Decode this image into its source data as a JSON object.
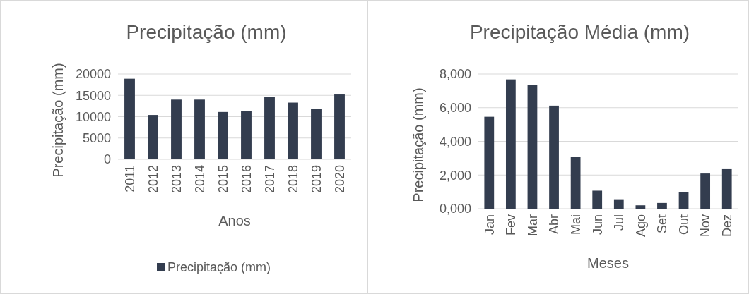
{
  "chart_data": [
    {
      "type": "bar",
      "title": "Precipitação (mm)",
      "xlabel": "Anos",
      "ylabel": "Precipitação (mm)",
      "categories": [
        "2011",
        "2012",
        "2013",
        "2014",
        "2015",
        "2016",
        "2017",
        "2018",
        "2019",
        "2020"
      ],
      "series": [
        {
          "name": "Precipitação (mm)",
          "color": "#333d4f",
          "values": [
            18900,
            10400,
            14000,
            14000,
            11100,
            11400,
            14700,
            13300,
            11900,
            15200
          ]
        }
      ],
      "ylim": [
        0,
        20000
      ],
      "yticks": [
        0,
        5000,
        10000,
        15000,
        20000
      ],
      "grid": "y",
      "legend": "bottom"
    },
    {
      "type": "bar",
      "title": "Precipitação Média (mm)",
      "xlabel": "Meses",
      "ylabel": "Precipitação (mm)",
      "categories": [
        "Jan",
        "Fev",
        "Mar",
        "Abr",
        "Mai",
        "Jun",
        "Jul",
        "Ago",
        "Set",
        "Out",
        "Nov",
        "Dez"
      ],
      "series": [
        {
          "color": "#333d4f",
          "values": [
            5460,
            7680,
            7370,
            6120,
            3070,
            1070,
            560,
            200,
            340,
            980,
            2090,
            2390
          ]
        }
      ],
      "ylim": [
        0,
        8000
      ],
      "yticks": [
        {
          "value": 0,
          "label": "0,000"
        },
        {
          "value": 2000,
          "label": "2,000"
        },
        {
          "value": 4000,
          "label": "4,000"
        },
        {
          "value": 6000,
          "label": "6,000"
        },
        {
          "value": 8000,
          "label": "8,000"
        }
      ],
      "grid": "y",
      "legend": false
    }
  ]
}
